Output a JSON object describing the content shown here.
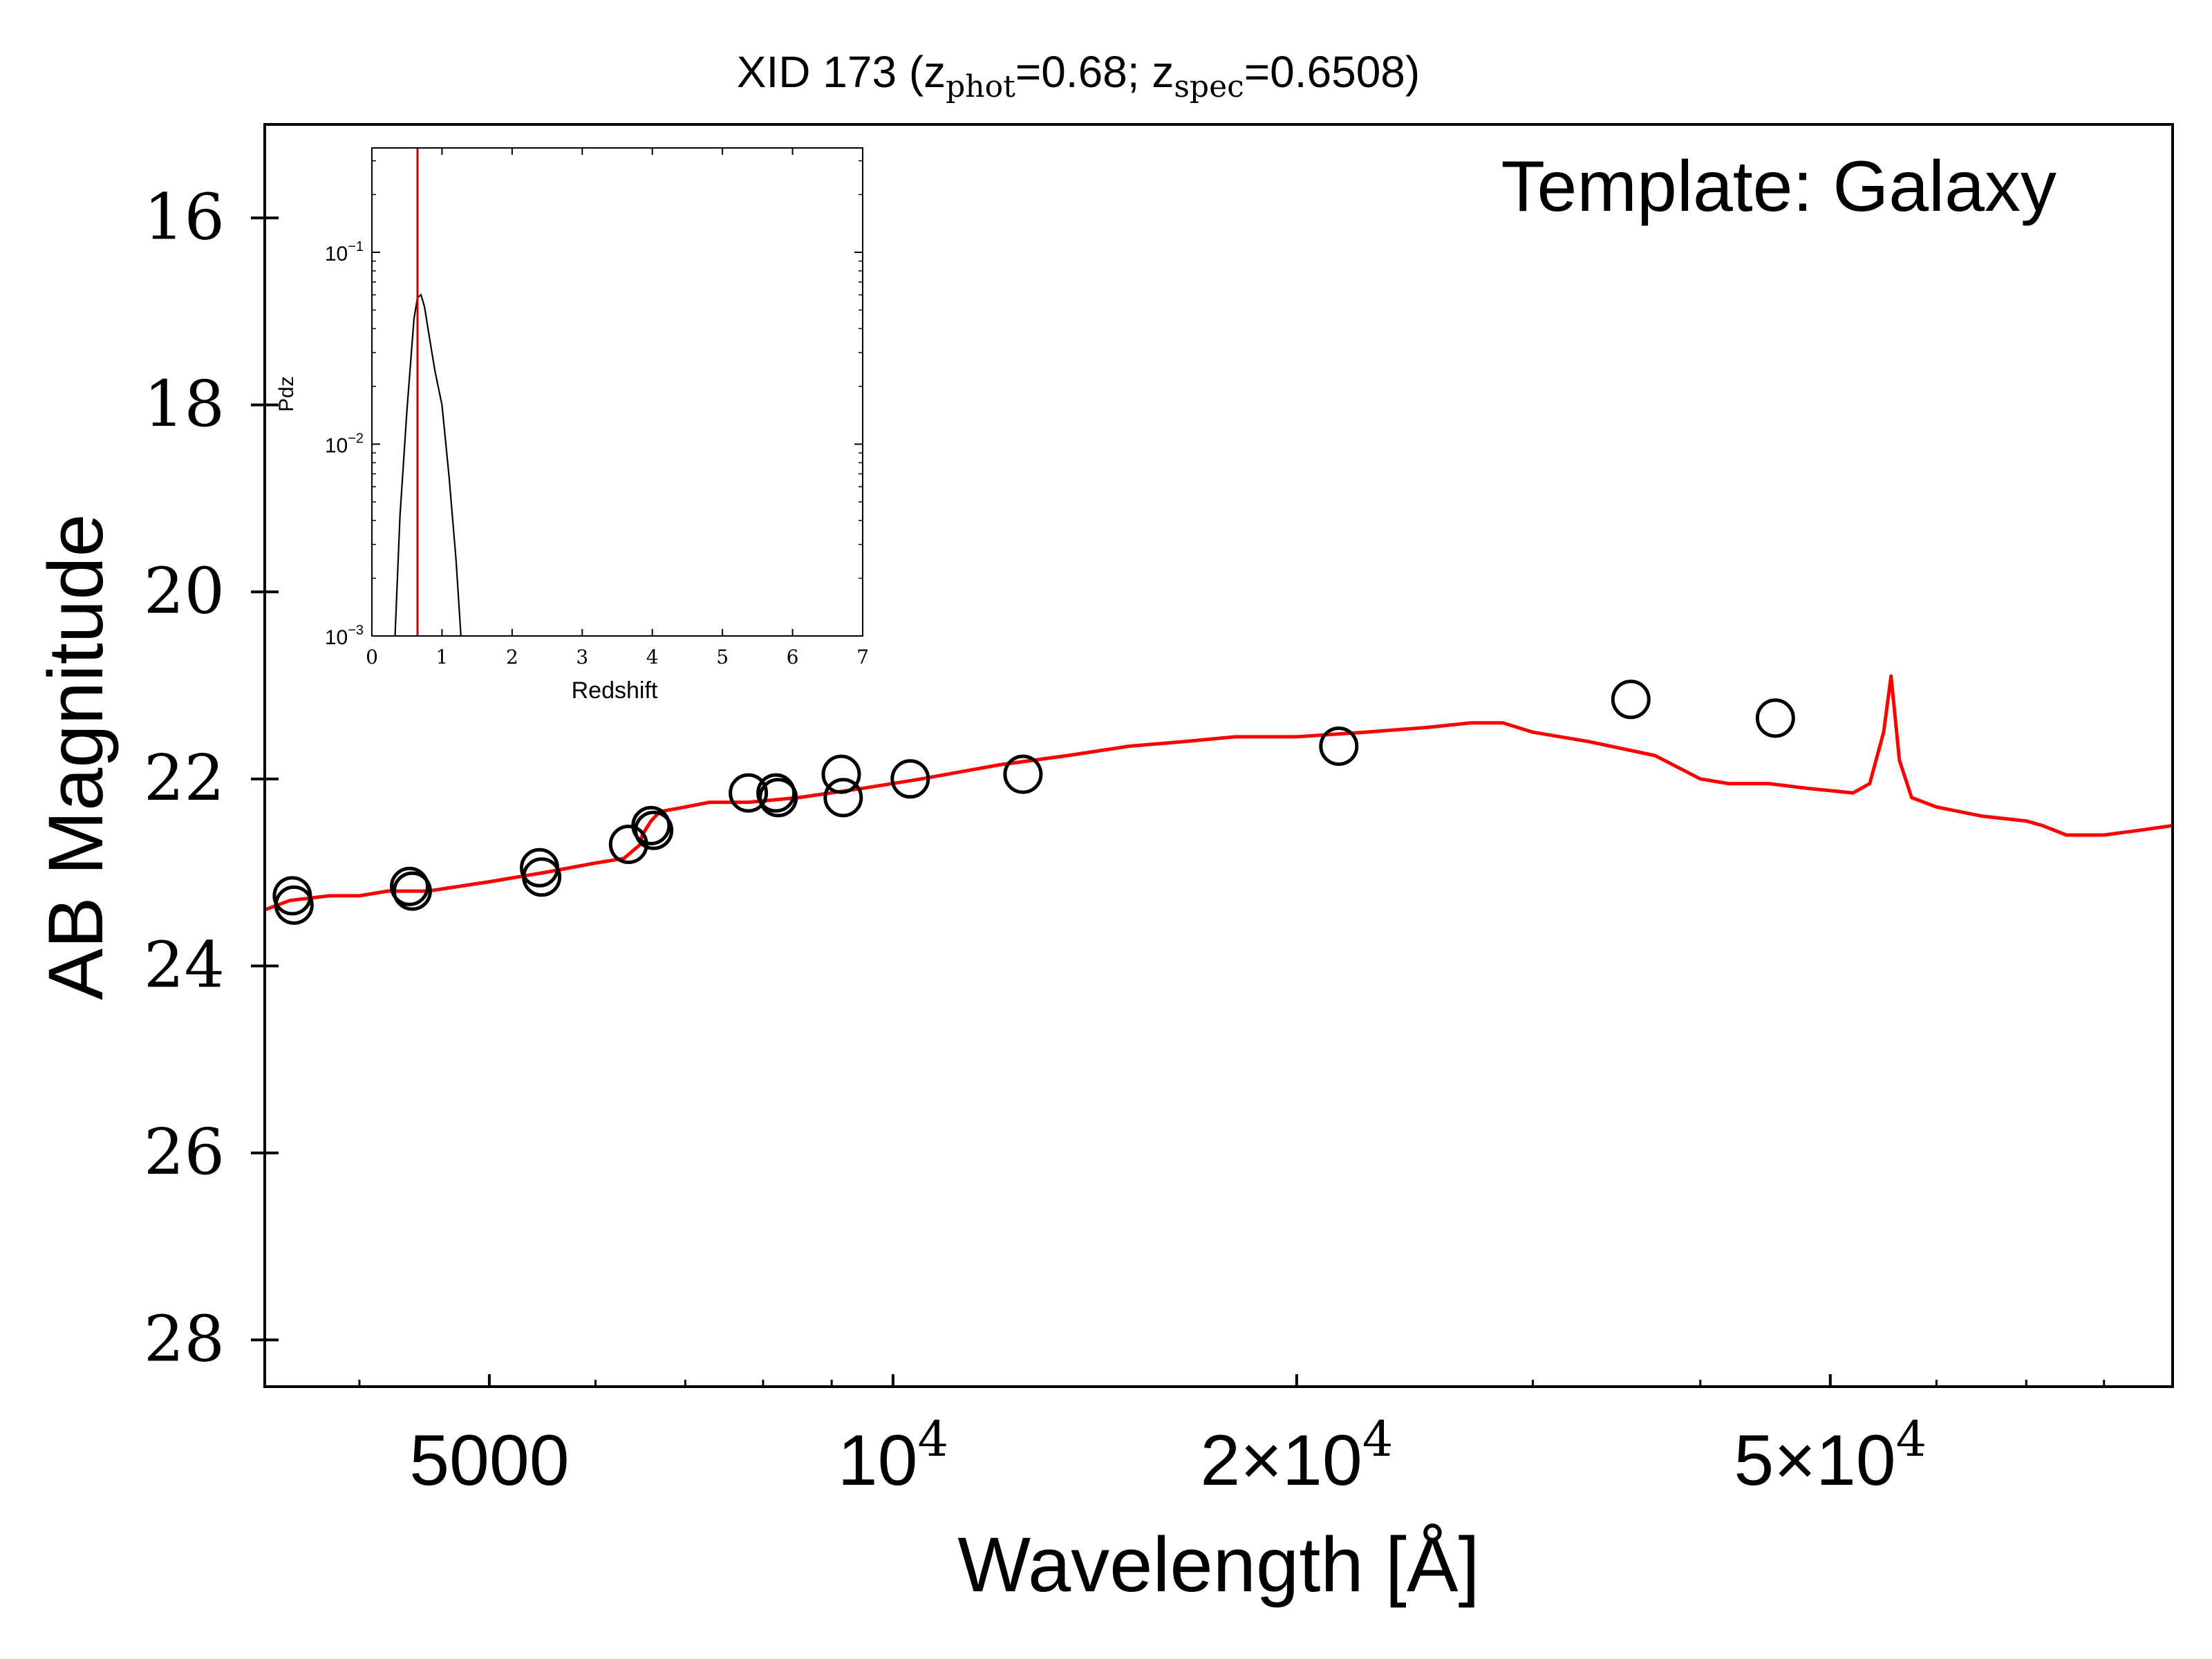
{
  "chart_data": [
    {
      "type": "scatter",
      "title": "XID 173 (z_phot=0.68; z_spec=0.6508)",
      "title_parts": {
        "prefix": "XID 173 (z",
        "sub1": "phot",
        "mid": "=0.68; z",
        "sub2": "spec",
        "suffix": "=0.6508)"
      },
      "annotation": "Template: Galaxy",
      "xlabel": "Wavelength [Å]",
      "ylabel": "AB Magnitude",
      "xscale": "log",
      "xlim": [
        3400,
        90000
      ],
      "ylim": [
        28.5,
        15
      ],
      "y_inverted": true,
      "xticks": [
        {
          "value": 5000,
          "base": "5000",
          "exp": ""
        },
        {
          "value": 10000,
          "base": "10",
          "exp": "4"
        },
        {
          "value": 20000,
          "base": "2×10",
          "exp": "4"
        },
        {
          "value": 50000,
          "base": "5×10",
          "exp": "4"
        }
      ],
      "yticks": [
        16,
        18,
        20,
        22,
        24,
        26,
        28
      ],
      "grid": false,
      "series": [
        {
          "kind": "photometry",
          "marker": "open-circle",
          "color": "#000000",
          "x": [
            3565,
            3575,
            4360,
            4380,
            5450,
            5470,
            6350,
            6600,
            6630,
            7800,
            8180,
            8210,
            9150,
            9180,
            10300,
            12500,
            21500,
            35500,
            45500
          ],
          "y": [
            23.25,
            23.35,
            23.15,
            23.2,
            22.95,
            23.05,
            22.7,
            22.5,
            22.55,
            22.15,
            22.15,
            22.2,
            21.95,
            22.2,
            22.0,
            21.95,
            21.65,
            21.15,
            21.35
          ]
        },
        {
          "kind": "template",
          "color": "#ff0000",
          "x": [
            3400,
            3550,
            3800,
            4000,
            4200,
            4500,
            5000,
            5500,
            6000,
            6300,
            6480,
            6500,
            6600,
            6700,
            7000,
            7300,
            7800,
            8500,
            9500,
            10500,
            12000,
            13500,
            15000,
            16500,
            18000,
            20000,
            22500,
            25000,
            27000,
            28500,
            30000,
            33000,
            37000,
            40000,
            42000,
            45000,
            48000,
            52000,
            53500,
            54800,
            55500,
            56300,
            57500,
            60000,
            65000,
            70000,
            72000,
            75000,
            80000,
            85000,
            90000
          ],
          "y": [
            23.4,
            23.3,
            23.25,
            23.25,
            23.2,
            23.2,
            23.1,
            23.0,
            22.9,
            22.85,
            22.7,
            22.6,
            22.45,
            22.35,
            22.3,
            22.25,
            22.25,
            22.2,
            22.1,
            22.0,
            21.85,
            21.75,
            21.65,
            21.6,
            21.55,
            21.55,
            21.5,
            21.45,
            21.4,
            21.4,
            21.5,
            21.6,
            21.75,
            22.0,
            22.05,
            22.05,
            22.1,
            22.15,
            22.05,
            21.5,
            20.9,
            21.8,
            22.2,
            22.3,
            22.4,
            22.45,
            22.5,
            22.6,
            22.6,
            22.55,
            22.5
          ]
        }
      ]
    },
    {
      "type": "line",
      "inset": true,
      "xlabel": "Redshift",
      "ylabel": "Pdz",
      "xlim": [
        0,
        7
      ],
      "ylim": [
        0.001,
        0.35
      ],
      "yscale": "log",
      "xticks": [
        "0",
        "1",
        "2",
        "3",
        "4",
        "5",
        "6",
        "7"
      ],
      "yticks": [
        {
          "value": 0.1,
          "base": "10",
          "exp": "−1"
        },
        {
          "value": 0.01,
          "base": "10",
          "exp": "−2"
        },
        {
          "value": 0.001,
          "base": "10",
          "exp": "−3"
        }
      ],
      "series": [
        {
          "kind": "pdz",
          "color": "#000000",
          "x": [
            0.33,
            0.4,
            0.5,
            0.6,
            0.65,
            0.7,
            0.75,
            0.82,
            0.9,
            1.0,
            1.1,
            1.2,
            1.27
          ],
          "y": [
            0.001,
            0.0042,
            0.015,
            0.045,
            0.058,
            0.06,
            0.052,
            0.036,
            0.024,
            0.016,
            0.0068,
            0.0025,
            0.001
          ]
        }
      ],
      "marker_line": {
        "x": 0.6508,
        "color": "#cc0000"
      }
    }
  ]
}
